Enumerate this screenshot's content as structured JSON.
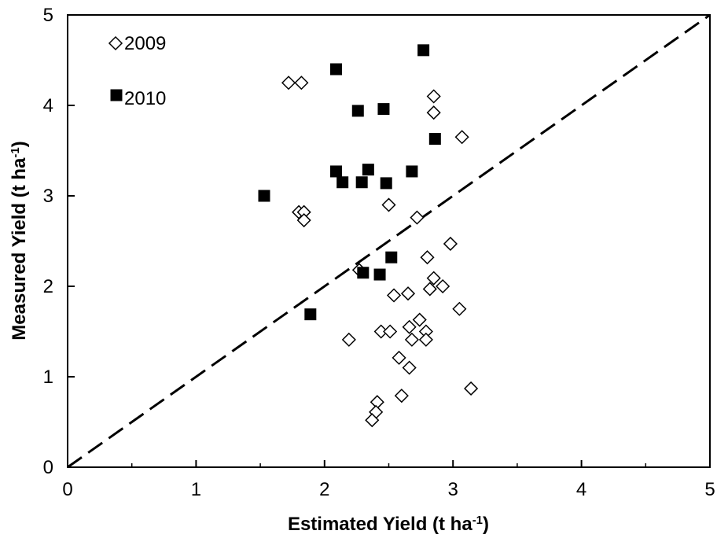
{
  "chart_data": {
    "type": "scatter",
    "xlabel": "Estimated Yield (t ha",
    "xlabel_sup": "-1",
    "xlabel_end": ")",
    "ylabel": "Measured Yield (t ha",
    "ylabel_sup": "-1",
    "ylabel_end": ")",
    "xlim": [
      0,
      5
    ],
    "ylim": [
      0,
      5
    ],
    "xticks": [
      "0",
      "1",
      "2",
      "3",
      "4",
      "5"
    ],
    "yticks": [
      "0",
      "1",
      "2",
      "3",
      "4",
      "5"
    ],
    "grid": false,
    "legend_position": "top-left",
    "reference_line": {
      "style": "dashed",
      "from": [
        0,
        0
      ],
      "to": [
        5,
        5
      ],
      "color": "#000000"
    },
    "series": [
      {
        "name": "2009",
        "marker": "diamond-open",
        "color": "#000000",
        "points": [
          [
            1.72,
            4.25
          ],
          [
            1.82,
            4.25
          ],
          [
            2.85,
            4.1
          ],
          [
            2.85,
            3.92
          ],
          [
            3.07,
            3.65
          ],
          [
            1.8,
            2.82
          ],
          [
            1.84,
            2.82
          ],
          [
            1.84,
            2.73
          ],
          [
            2.5,
            2.9
          ],
          [
            2.72,
            2.76
          ],
          [
            2.98,
            2.47
          ],
          [
            2.8,
            2.32
          ],
          [
            2.27,
            2.18
          ],
          [
            2.85,
            2.09
          ],
          [
            2.92,
            2.0
          ],
          [
            2.82,
            1.97
          ],
          [
            2.65,
            1.92
          ],
          [
            2.54,
            1.9
          ],
          [
            3.05,
            1.75
          ],
          [
            2.74,
            1.63
          ],
          [
            2.66,
            1.55
          ],
          [
            2.44,
            1.5
          ],
          [
            2.51,
            1.5
          ],
          [
            2.79,
            1.5
          ],
          [
            2.79,
            1.41
          ],
          [
            2.68,
            1.41
          ],
          [
            2.19,
            1.41
          ],
          [
            2.58,
            1.21
          ],
          [
            2.66,
            1.1
          ],
          [
            3.14,
            0.87
          ],
          [
            2.6,
            0.79
          ],
          [
            2.41,
            0.72
          ],
          [
            2.4,
            0.61
          ],
          [
            2.37,
            0.52
          ]
        ]
      },
      {
        "name": "2010",
        "marker": "square-filled",
        "color": "#000000",
        "points": [
          [
            2.77,
            4.61
          ],
          [
            2.09,
            4.4
          ],
          [
            2.26,
            3.94
          ],
          [
            2.46,
            3.96
          ],
          [
            2.86,
            3.63
          ],
          [
            2.34,
            3.29
          ],
          [
            2.09,
            3.27
          ],
          [
            2.68,
            3.27
          ],
          [
            2.14,
            3.15
          ],
          [
            2.29,
            3.15
          ],
          [
            2.48,
            3.14
          ],
          [
            1.53,
            3.0
          ],
          [
            2.52,
            2.32
          ],
          [
            2.3,
            2.15
          ],
          [
            2.43,
            2.13
          ],
          [
            1.89,
            1.69
          ]
        ]
      }
    ]
  }
}
